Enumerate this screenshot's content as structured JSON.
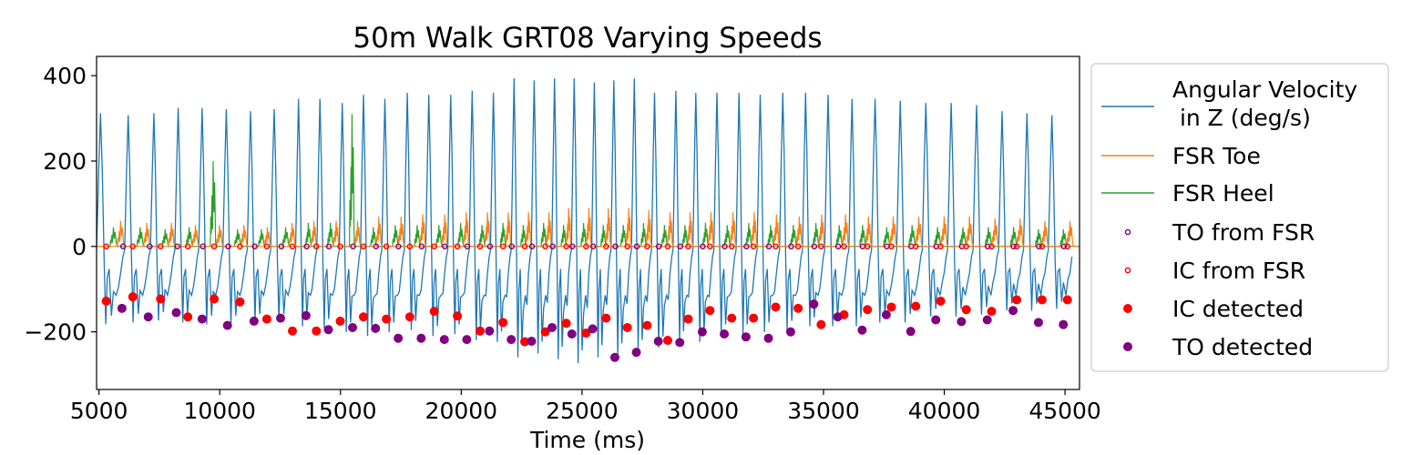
{
  "chart_data": {
    "type": "line",
    "title": "50m Walk GRT08 Varying Speeds",
    "xlabel": "Time (ms)",
    "ylabel": "",
    "xlim": [
      4900,
      45600
    ],
    "ylim": [
      -335,
      445
    ],
    "x_ticks": [
      5000,
      10000,
      15000,
      20000,
      25000,
      30000,
      35000,
      40000,
      45000
    ],
    "y_ticks": [
      -200,
      0,
      200,
      400
    ],
    "x_tick_labels": [
      "5000",
      "10000",
      "15000",
      "20000",
      "25000",
      "30000",
      "35000",
      "40000",
      "45000"
    ],
    "y_tick_labels": [
      "−200",
      "0",
      "200",
      "400"
    ],
    "grid": false,
    "legend_position": "outside-right",
    "colors": {
      "angular_velocity": "#1f77b4",
      "fsr_toe": "#ff7f0e",
      "fsr_heel": "#2ca02c",
      "to": "#800080",
      "ic": "#ff0000"
    },
    "legend": [
      {
        "key": "angular",
        "label_line1": "Angular Velocity",
        "label_line2": " in Z (deg/s)",
        "kind": "line",
        "color": "#1f77b4"
      },
      {
        "key": "toe",
        "label": "FSR Toe",
        "kind": "line",
        "color": "#ff7f0e"
      },
      {
        "key": "heel",
        "label": "FSR Heel",
        "kind": "line",
        "color": "#2ca02c"
      },
      {
        "key": "to_fsr",
        "label": "TO from FSR",
        "kind": "open-marker",
        "color": "#800080"
      },
      {
        "key": "ic_fsr",
        "label": "IC from FSR",
        "kind": "open-marker",
        "color": "#ff0000"
      },
      {
        "key": "ic_det",
        "label": "IC detected",
        "kind": "filled-marker",
        "color": "#ff0000"
      },
      {
        "key": "to_det",
        "label": "TO detected",
        "kind": "filled-marker",
        "color": "#800080"
      }
    ],
    "series": [
      {
        "name": "Angular Velocity in Z (deg/s)",
        "kind": "cycles",
        "cycle_start_ms": [
          4900,
          6060,
          7130,
          8140,
          9130,
          10130,
          11140,
          12110,
          13140,
          14020,
          14950,
          15830,
          16710,
          17640,
          18530,
          19440,
          20330,
          21210,
          22070,
          22900,
          23750,
          24560,
          25400,
          26200,
          27050,
          27880,
          28770,
          29590,
          30460,
          31380,
          32250,
          33180,
          34130,
          35050,
          36050,
          36990,
          38030,
          39090,
          40140,
          41190,
          42250,
          43280,
          44310,
          45350
        ],
        "peak_values": [
          325,
          320,
          325,
          338,
          338,
          335,
          330,
          335,
          360,
          360,
          350,
          370,
          360,
          375,
          370,
          370,
          380,
          375,
          410,
          405,
          410,
          410,
          400,
          405,
          410,
          375,
          380,
          375,
          375,
          375,
          370,
          375,
          375,
          370,
          360,
          360,
          355,
          350,
          350,
          345,
          330,
          325,
          320
        ],
        "trough_values": [
          -200,
          -195,
          -190,
          -195,
          -200,
          -200,
          -195,
          -195,
          -205,
          -210,
          -220,
          -230,
          -220,
          -215,
          -230,
          -225,
          -240,
          -245,
          -285,
          -275,
          -290,
          -300,
          -285,
          -280,
          -270,
          -260,
          -245,
          -245,
          -225,
          -225,
          -220,
          -215,
          -205,
          -205,
          -205,
          -195,
          -195,
          -180,
          -180,
          -175,
          -165,
          -165,
          -160
        ]
      },
      {
        "name": "FSR Toe",
        "kind": "spikes",
        "peak_values": [
          60,
          55,
          55,
          50,
          50,
          50,
          45,
          55,
          60,
          60,
          60,
          70,
          70,
          75,
          75,
          80,
          80,
          80,
          80,
          80,
          90,
          90,
          90,
          90,
          85,
          80,
          80,
          80,
          80,
          80,
          75,
          70,
          75,
          75,
          70,
          70,
          70,
          70,
          70,
          65,
          65,
          60,
          60
        ]
      },
      {
        "name": "FSR Heel",
        "kind": "spikes",
        "peak_values": [
          45,
          45,
          40,
          45,
          200,
          40,
          40,
          45,
          55,
          55,
          310,
          45,
          50,
          50,
          50,
          55,
          50,
          55,
          50,
          55,
          50,
          55,
          50,
          50,
          55,
          50,
          50,
          55,
          50,
          55,
          50,
          50,
          55,
          50,
          50,
          45,
          50,
          45,
          45,
          45,
          45,
          40,
          40
        ]
      },
      {
        "name": "IC detected",
        "kind": "points",
        "x": [
          5300,
          6400,
          7550,
          8680,
          9770,
          10840,
          11950,
          13010,
          14000,
          14990,
          15950,
          16900,
          17870,
          18880,
          19840,
          20780,
          21730,
          22630,
          23480,
          24350,
          25170,
          26000,
          26880,
          27700,
          28550,
          29400,
          30300,
          31200,
          32100,
          33020,
          33950,
          34900,
          35850,
          36820,
          37810,
          38820,
          39850,
          40910,
          41960,
          43000,
          44050,
          45100
        ],
        "y": [
          -128,
          -118,
          -123,
          -165,
          -123,
          -130,
          -170,
          -198,
          -198,
          -175,
          -165,
          -170,
          -165,
          -152,
          -163,
          -198,
          -178,
          -223,
          -200,
          -180,
          -203,
          -168,
          -190,
          -185,
          -220,
          -170,
          -150,
          -168,
          -168,
          -142,
          -145,
          -183,
          -160,
          -148,
          -142,
          -140,
          -128,
          -148,
          -152,
          -125,
          -125,
          -125
        ]
      },
      {
        "name": "TO detected",
        "kind": "points",
        "x": [
          5950,
          7040,
          8200,
          9270,
          10320,
          11420,
          12520,
          13570,
          14500,
          15500,
          16450,
          17390,
          18340,
          19300,
          20230,
          21170,
          22070,
          22910,
          23760,
          24580,
          25440,
          26360,
          27250,
          28160,
          29050,
          29980,
          30890,
          31790,
          32720,
          33640,
          34600,
          35590,
          36600,
          37600,
          38610,
          39650,
          40710,
          41780,
          42850,
          43900,
          44930
        ],
        "y": [
          -145,
          -165,
          -155,
          -170,
          -185,
          -175,
          -168,
          -162,
          -195,
          -190,
          -192,
          -215,
          -215,
          -218,
          -218,
          -198,
          -218,
          -222,
          -190,
          -205,
          -193,
          -260,
          -248,
          -222,
          -225,
          -200,
          -205,
          -212,
          -215,
          -200,
          -135,
          -165,
          -196,
          -160,
          -199,
          -172,
          -176,
          -172,
          -150,
          -178,
          -183
        ]
      },
      {
        "name": "TO from FSR",
        "kind": "points",
        "x": [
          6000,
          7100,
          8250,
          9300,
          10350,
          11450,
          12550,
          13600,
          14520,
          15520,
          16470,
          17400,
          18360,
          19320,
          20250,
          21190,
          22090,
          22930,
          23780,
          24600,
          25460,
          26380,
          27270,
          28180,
          29070,
          30000,
          30910,
          31810,
          32740,
          33660,
          34620,
          35610,
          36620,
          37620,
          38630,
          39670,
          40730,
          41800,
          42870,
          43920,
          44950
        ],
        "y": 0
      },
      {
        "name": "IC from FSR",
        "kind": "points",
        "x": [
          5300,
          6400,
          7550,
          8680,
          9770,
          10840,
          11950,
          13010,
          14000,
          14990,
          15950,
          16900,
          17870,
          18880,
          19840,
          20780,
          21730,
          22630,
          23480,
          24350,
          25170,
          26000,
          26880,
          27700,
          28550,
          29400,
          30300,
          31200,
          32100,
          33020,
          33950,
          34900,
          35850,
          36820,
          37810,
          38820,
          39850,
          40910,
          41960,
          43000,
          44050,
          45100
        ],
        "y": 0
      }
    ]
  }
}
